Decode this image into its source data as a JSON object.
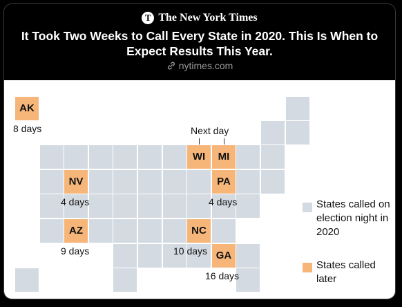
{
  "post": {
    "source": "The New York Times",
    "logo_letter": "T",
    "title": "It Took Two Weeks to Call Every State in 2020. This Is When to Expect Results This Year.",
    "domain": "nytimes.com"
  },
  "colors": {
    "called_on_election_night": "#d4dae1",
    "called_later": "#f6b67a"
  },
  "states_called_later": [
    {
      "abbr": "AK",
      "days": "8 days"
    },
    {
      "abbr": "WI",
      "days": "Next day"
    },
    {
      "abbr": "MI",
      "days": "Next day"
    },
    {
      "abbr": "NV",
      "days": "4 days"
    },
    {
      "abbr": "PA",
      "days": "4 days"
    },
    {
      "abbr": "AZ",
      "days": "9 days"
    },
    {
      "abbr": "NC",
      "days": "10 days"
    },
    {
      "abbr": "GA",
      "days": "16 days"
    }
  ],
  "annotations": {
    "ak": "8 days",
    "wi_mi": "Next day",
    "nv": "4 days",
    "pa": "4 days",
    "az": "9 days",
    "nc": "10 days",
    "ga": "16 days"
  },
  "legend": {
    "election_night": "States called on election night in 2020",
    "later": "States called later"
  }
}
